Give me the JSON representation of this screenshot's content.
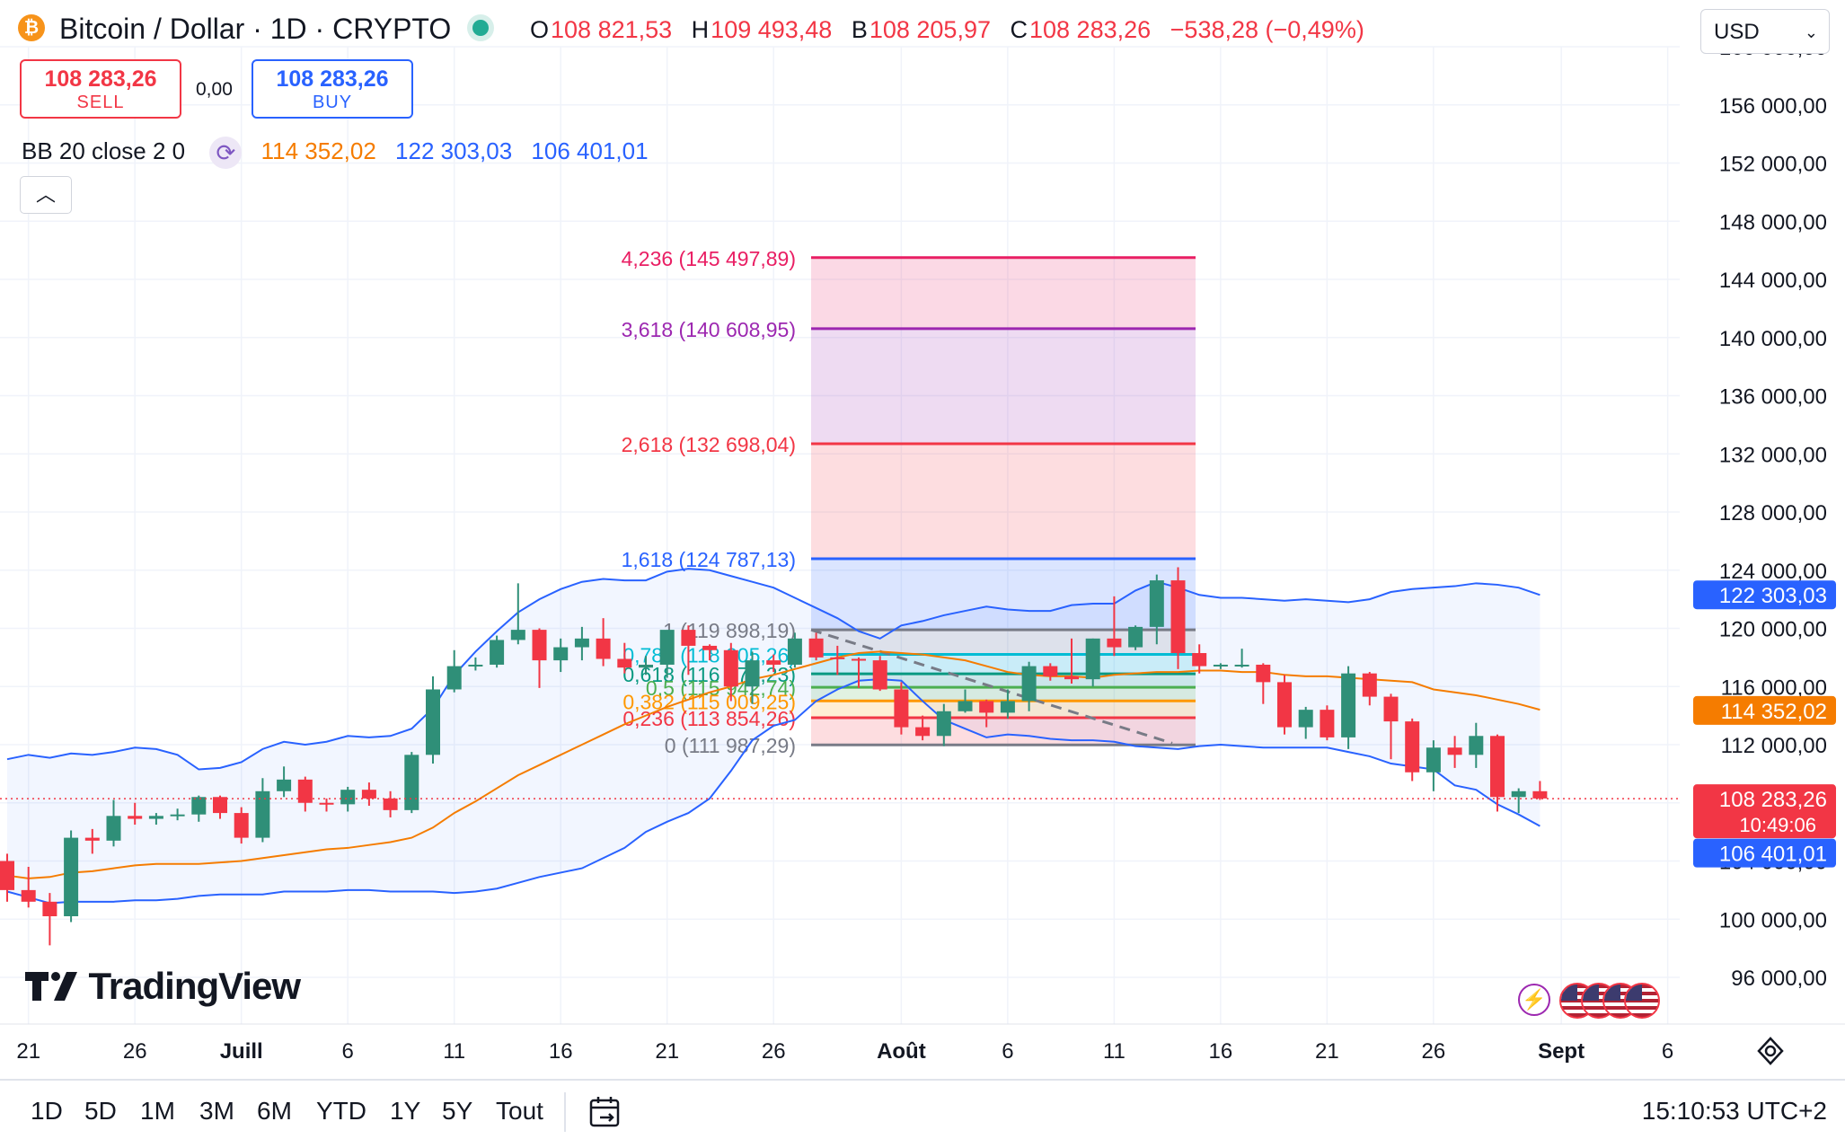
{
  "header": {
    "symbol_icon": "bitcoin-icon",
    "title": "Bitcoin / Dollar · 1D · CRYPTO",
    "ohlc": [
      {
        "k": "O",
        "v": "108 821,53"
      },
      {
        "k": "H",
        "v": "109 493,48"
      },
      {
        "k": "B",
        "v": "108 205,97"
      },
      {
        "k": "C",
        "v": "108 283,26"
      },
      {
        "k": "",
        "v": "−538,28 (−0,49%)"
      }
    ],
    "currency": "USD"
  },
  "trade": {
    "sell_price": "108 283,26",
    "sell_label": "SELL",
    "spread": "0,00",
    "buy_price": "108 283,26",
    "buy_label": "BUY"
  },
  "indicator": {
    "name": "BB 20 close 2 0",
    "basis": "114 352,02",
    "upper": "122 303,03",
    "lower": "106 401,01",
    "colors": {
      "basis": "#f57c00",
      "upper": "#2962ff",
      "lower": "#2962ff"
    }
  },
  "price_axis": {
    "ticks": [
      "160 000,00",
      "156 000,00",
      "152 000,00",
      "148 000,00",
      "144 000,00",
      "140 000,00",
      "136 000,00",
      "132 000,00",
      "128 000,00",
      "124 000,00",
      "120 000,00",
      "116 000,00",
      "112 000,00",
      "108 000,00",
      "104 000,00",
      "100 000,00",
      "96 000,00"
    ],
    "labels": {
      "upper": {
        "text": "122 303,03",
        "value": 122303.03,
        "color": "#2962ff"
      },
      "basis": {
        "text": "114 352,02",
        "value": 114352.02,
        "color": "#f57c00"
      },
      "last": {
        "text": "108 283,26",
        "countdown": "10:49:06",
        "value": 108283.26,
        "color": "#f23645"
      },
      "lower": {
        "text": "106 401,01",
        "value": 106401.01,
        "color": "#2962ff"
      }
    }
  },
  "time_axis": [
    "21",
    "26",
    "Juill",
    "6",
    "11",
    "16",
    "21",
    "26",
    "Août",
    "6",
    "11",
    "16",
    "21",
    "26",
    "Sept",
    "6"
  ],
  "fib": {
    "levels": [
      {
        "ratio": "4,236",
        "price": "145 497,89",
        "value": 145497.89,
        "color": "#e91e63"
      },
      {
        "ratio": "3,618",
        "price": "140 608,95",
        "value": 140608.95,
        "color": "#9c27b0"
      },
      {
        "ratio": "2,618",
        "price": "132 698,04",
        "value": 132698.04,
        "color": "#f23645"
      },
      {
        "ratio": "1,618",
        "price": "124 787,13",
        "value": 124787.13,
        "color": "#2962ff"
      },
      {
        "ratio": "1",
        "price": "119 898,19",
        "value": 119898.19,
        "color": "#787b86"
      },
      {
        "ratio": "0,786",
        "price": "118 205,26",
        "value": 118205.26,
        "color": "#00bcd4"
      },
      {
        "ratio": "0,618",
        "price": "116 876,23",
        "value": 116876.23,
        "color": "#089981"
      },
      {
        "ratio": "0,5",
        "price": "115 942,74",
        "value": 115942.74,
        "color": "#4caf50"
      },
      {
        "ratio": "0,382",
        "price": "115 009,25",
        "value": 115009.25,
        "color": "#ff9800"
      },
      {
        "ratio": "0,236",
        "price": "113 854,26",
        "value": 113854.26,
        "color": "#f23645"
      },
      {
        "ratio": "0",
        "price": "111 987,29",
        "value": 111987.29,
        "color": "#787b86"
      }
    ]
  },
  "chart_data": {
    "type": "candlestick",
    "title": "Bitcoin / Dollar · 1D · CRYPTO",
    "ylim": [
      94000,
      161000
    ],
    "x_dates": [
      "Jun 20",
      "Jun 21",
      "Jun 22",
      "Jun 23",
      "Jun 24",
      "Jun 25",
      "Jun 26",
      "Jun 27",
      "Jun 28",
      "Jun 29",
      "Jun 30",
      "Jul 1",
      "Jul 2",
      "Jul 3",
      "Jul 4",
      "Jul 5",
      "Jul 6",
      "Jul 7",
      "Jul 8",
      "Jul 9",
      "Jul 10",
      "Jul 11",
      "Jul 12",
      "Jul 13",
      "Jul 14",
      "Jul 15",
      "Jul 16",
      "Jul 17",
      "Jul 18",
      "Jul 19",
      "Jul 20",
      "Jul 21",
      "Jul 22",
      "Jul 23",
      "Jul 24",
      "Jul 25",
      "Jul 26",
      "Jul 27",
      "Jul 28",
      "Jul 29",
      "Jul 30",
      "Jul 31",
      "Aug 1",
      "Aug 2",
      "Aug 3",
      "Aug 4",
      "Aug 5",
      "Aug 6",
      "Aug 7",
      "Aug 8",
      "Aug 9",
      "Aug 10",
      "Aug 11",
      "Aug 12",
      "Aug 13",
      "Aug 14",
      "Aug 15",
      "Aug 16",
      "Aug 17",
      "Aug 18",
      "Aug 19",
      "Aug 20",
      "Aug 21",
      "Aug 22",
      "Aug 23",
      "Aug 24",
      "Aug 25",
      "Aug 26",
      "Aug 27",
      "Aug 28",
      "Aug 29",
      "Aug 30",
      "Aug 31"
    ],
    "ohlc": [
      [
        104000,
        104500,
        101200,
        102000
      ],
      [
        102000,
        103600,
        100800,
        101200
      ],
      [
        101200,
        101800,
        98200,
        100200
      ],
      [
        100200,
        106100,
        99800,
        105600
      ],
      [
        105600,
        106200,
        104500,
        105400
      ],
      [
        105400,
        108200,
        105000,
        107100
      ],
      [
        107100,
        108000,
        106500,
        106900
      ],
      [
        106900,
        107300,
        106500,
        107100
      ],
      [
        107100,
        107600,
        106800,
        107200
      ],
      [
        107200,
        108500,
        106700,
        108400
      ],
      [
        108400,
        108500,
        106900,
        107300
      ],
      [
        107300,
        107700,
        105200,
        105600
      ],
      [
        105600,
        109700,
        105300,
        108800
      ],
      [
        108800,
        110500,
        108400,
        109600
      ],
      [
        109600,
        109800,
        107400,
        108000
      ],
      [
        108000,
        108300,
        107400,
        107900
      ],
      [
        107900,
        109100,
        107400,
        108900
      ],
      [
        108900,
        109400,
        107800,
        108300
      ],
      [
        108300,
        108800,
        107000,
        107500
      ],
      [
        107500,
        111500,
        107300,
        111300
      ],
      [
        111300,
        116700,
        110700,
        115800
      ],
      [
        115800,
        118500,
        115600,
        117400
      ],
      [
        117400,
        118000,
        117100,
        117500
      ],
      [
        117500,
        119500,
        117300,
        119200
      ],
      [
        119200,
        123100,
        118900,
        119900
      ],
      [
        119900,
        120000,
        115900,
        117800
      ],
      [
        117800,
        119300,
        117000,
        118700
      ],
      [
        118700,
        120100,
        117800,
        119300
      ],
      [
        119300,
        120700,
        117400,
        117900
      ],
      [
        117900,
        119000,
        116900,
        117300
      ],
      [
        117300,
        118100,
        116800,
        117500
      ],
      [
        117500,
        119700,
        116600,
        119900
      ],
      [
        119900,
        120200,
        116800,
        118800
      ],
      [
        118800,
        118900,
        117800,
        118500
      ],
      [
        118500,
        119000,
        115000,
        116000
      ],
      [
        116000,
        118400,
        114800,
        117800
      ],
      [
        117800,
        118200,
        117000,
        117500
      ],
      [
        117500,
        119700,
        117300,
        119300
      ],
      [
        119300,
        119700,
        117800,
        118000
      ],
      [
        118000,
        118800,
        116800,
        117900
      ],
      [
        117900,
        118000,
        115900,
        117800
      ],
      [
        117800,
        118100,
        115700,
        115800
      ],
      [
        115800,
        116300,
        112700,
        113200
      ],
      [
        113200,
        114000,
        112300,
        112600
      ],
      [
        112600,
        114800,
        111900,
        114300
      ],
      [
        114300,
        115800,
        114200,
        115000
      ],
      [
        115000,
        115100,
        113200,
        114200
      ],
      [
        114200,
        115800,
        113800,
        115000
      ],
      [
        115000,
        117700,
        114300,
        117400
      ],
      [
        117400,
        117600,
        116400,
        116700
      ],
      [
        116700,
        119300,
        116200,
        116500
      ],
      [
        116500,
        119300,
        116000,
        119300
      ],
      [
        119300,
        122200,
        118100,
        118700
      ],
      [
        118700,
        120200,
        118500,
        120100
      ],
      [
        120100,
        123700,
        118900,
        123300
      ],
      [
        123300,
        124200,
        117200,
        118300
      ],
      [
        118300,
        118900,
        116900,
        117400
      ],
      [
        117400,
        117600,
        117200,
        117500
      ],
      [
        117500,
        118600,
        117300,
        117500
      ],
      [
        117500,
        117600,
        114800,
        116300
      ],
      [
        116300,
        116800,
        112700,
        113200
      ],
      [
        113200,
        114600,
        112400,
        114400
      ],
      [
        114400,
        114700,
        112300,
        112500
      ],
      [
        112500,
        117400,
        111700,
        116900
      ],
      [
        116900,
        117000,
        114700,
        115300
      ],
      [
        115300,
        115500,
        111000,
        113600
      ],
      [
        113600,
        113800,
        109500,
        110100
      ],
      [
        110100,
        112300,
        108800,
        111800
      ],
      [
        111800,
        112600,
        110400,
        111300
      ],
      [
        111300,
        113500,
        110400,
        112600
      ],
      [
        112600,
        112700,
        107400,
        108400
      ],
      [
        108400,
        109000,
        107300,
        108800
      ],
      [
        108800,
        109500,
        108200,
        108300
      ]
    ],
    "bb": {
      "upper": [
        111000,
        111300,
        111100,
        111400,
        111300,
        111500,
        111800,
        111700,
        111300,
        110300,
        110400,
        110800,
        111700,
        112200,
        112000,
        112200,
        112600,
        112500,
        112600,
        113100,
        114500,
        116800,
        118400,
        119800,
        121100,
        122000,
        122700,
        123200,
        123400,
        123300,
        123300,
        123900,
        124100,
        124000,
        123600,
        123200,
        122800,
        122100,
        121400,
        120700,
        119800,
        119300,
        120200,
        120500,
        120900,
        121200,
        121500,
        121300,
        121200,
        121200,
        121600,
        121700,
        121700,
        122600,
        123200,
        122800,
        122300,
        122100,
        122100,
        122000,
        121900,
        122000,
        121900,
        121800,
        122000,
        122500,
        122700,
        122800,
        122900,
        123100,
        123000,
        122800,
        122300
      ],
      "basis": [
        103000,
        102800,
        102900,
        103200,
        103300,
        103500,
        103700,
        103800,
        103800,
        103800,
        103900,
        104000,
        104200,
        104400,
        104600,
        104800,
        104900,
        105100,
        105300,
        105600,
        106300,
        107300,
        108100,
        109000,
        109900,
        110600,
        111300,
        112000,
        112700,
        113400,
        114000,
        114600,
        115100,
        115600,
        116000,
        116500,
        116800,
        117200,
        117600,
        118000,
        118300,
        118400,
        118300,
        118200,
        118000,
        117800,
        117400,
        117000,
        116800,
        116700,
        116700,
        116600,
        116800,
        116900,
        117000,
        117000,
        117100,
        117100,
        117000,
        117000,
        116800,
        116700,
        116700,
        116600,
        116500,
        116400,
        116300,
        115800,
        115600,
        115400,
        115100,
        114800,
        114400
      ],
      "lower": [
        101900,
        101500,
        101100,
        101200,
        101200,
        101200,
        101300,
        101300,
        101400,
        101600,
        101700,
        101700,
        101700,
        101900,
        101900,
        101900,
        102000,
        102000,
        101900,
        101900,
        101900,
        101800,
        101900,
        102100,
        102500,
        102900,
        103200,
        103500,
        104200,
        104900,
        106000,
        106700,
        107300,
        108300,
        110200,
        112300,
        113300,
        113700,
        115000,
        115800,
        116400,
        116500,
        116400,
        115000,
        113700,
        113100,
        112500,
        112700,
        112600,
        112400,
        112300,
        112300,
        112200,
        111900,
        111800,
        111700,
        111900,
        112000,
        111900,
        111800,
        111800,
        111800,
        111800,
        111500,
        111200,
        110700,
        110500,
        110300,
        109200,
        108900,
        107900,
        107200,
        106400
      ]
    },
    "last_price": 108283.26
  }
}
